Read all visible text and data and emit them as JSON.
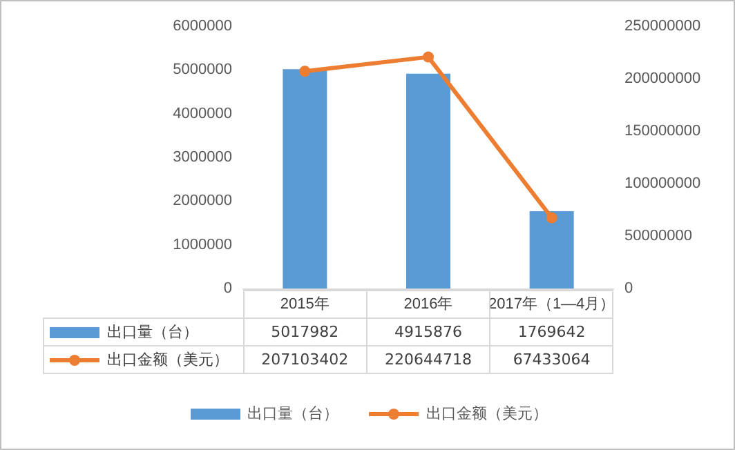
{
  "chart_data": {
    "type": "bar",
    "categories": [
      "2015年",
      "2016年",
      "2017年（1—4月）"
    ],
    "series": [
      {
        "name": "出口量（台）",
        "color": "#5b9bd5",
        "values": [
          5017982,
          4915876,
          1769642
        ]
      },
      {
        "name": "出口金额（美元）",
        "type": "line",
        "axis": "y2",
        "color": "#ed7d31",
        "marker": "circle",
        "line_style": "solid",
        "values": [
          207103402,
          220644718,
          67433064
        ]
      }
    ],
    "ylim": [
      0,
      6000000
    ],
    "yticks": [
      0,
      1000000,
      2000000,
      3000000,
      4000000,
      5000000,
      6000000
    ],
    "y2lim": [
      0,
      250000000
    ],
    "y2ticks": [
      0,
      50000000,
      100000000,
      150000000,
      200000000,
      250000000
    ],
    "data_labels": true,
    "legend": "bottom"
  }
}
